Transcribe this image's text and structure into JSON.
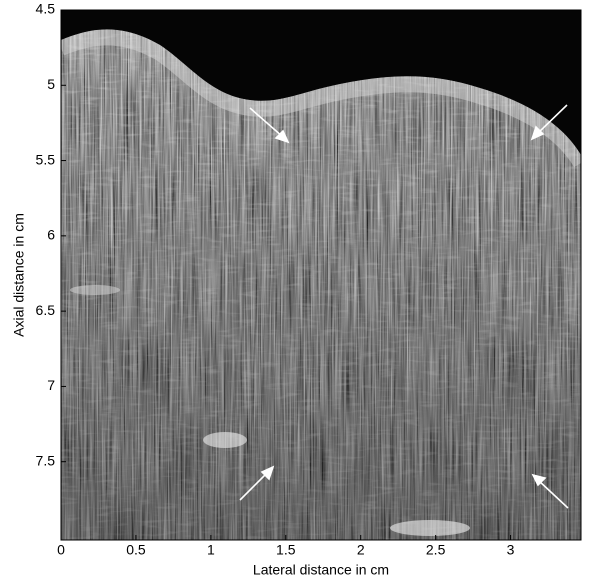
{
  "chart_data": {
    "type": "image",
    "xlabel": "Lateral distance in cm",
    "ylabel": "Axial distance in cm",
    "xlim": [
      0,
      3.47
    ],
    "ylim": [
      4.5,
      8.02
    ],
    "y_inverted": true,
    "xticks": [
      0,
      0.5,
      1,
      1.5,
      2,
      2.5,
      3
    ],
    "yticks": [
      4.5,
      5,
      5.5,
      6,
      6.5,
      7,
      7.5
    ],
    "colormap": "gray"
  }
}
